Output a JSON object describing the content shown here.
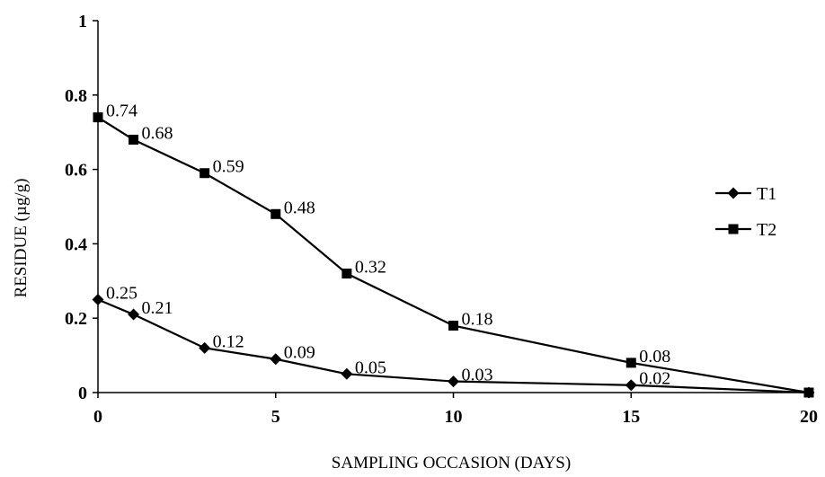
{
  "chart_data": {
    "type": "line",
    "title": "",
    "xlabel": "SAMPLING OCCASION (DAYS)",
    "ylabel": "RESIDUE (µg/g)",
    "xlim": [
      0,
      20
    ],
    "ylim": [
      0,
      1
    ],
    "x_ticks": [
      0,
      5,
      10,
      15,
      20
    ],
    "x_tick_labels": [
      "0",
      "5",
      "10",
      "15",
      "20"
    ],
    "y_ticks": [
      0,
      0.2,
      0.4,
      0.6,
      0.8,
      1
    ],
    "y_tick_labels": [
      "0",
      "0.2",
      "0.4",
      "0.6",
      "0.8",
      "1"
    ],
    "grid": false,
    "legend_position": "right",
    "series": [
      {
        "name": "T1",
        "marker": "diamond",
        "color": "#000000",
        "x": [
          0,
          1,
          3,
          5,
          7,
          10,
          15,
          20
        ],
        "y": [
          0.25,
          0.21,
          0.12,
          0.09,
          0.05,
          0.03,
          0.02,
          0
        ],
        "labels": [
          "0.25",
          "0.21",
          "0.12",
          "0.09",
          "0.05",
          "0.03",
          "0.02",
          ""
        ]
      },
      {
        "name": "T2",
        "marker": "square",
        "color": "#000000",
        "x": [
          0,
          1,
          3,
          5,
          7,
          10,
          15,
          20
        ],
        "y": [
          0.74,
          0.68,
          0.59,
          0.48,
          0.32,
          0.18,
          0.08,
          0
        ],
        "labels": [
          "0.74",
          "0.68",
          "0.59",
          "0.48",
          "0.32",
          "0.18",
          "0.08",
          ""
        ]
      }
    ]
  }
}
